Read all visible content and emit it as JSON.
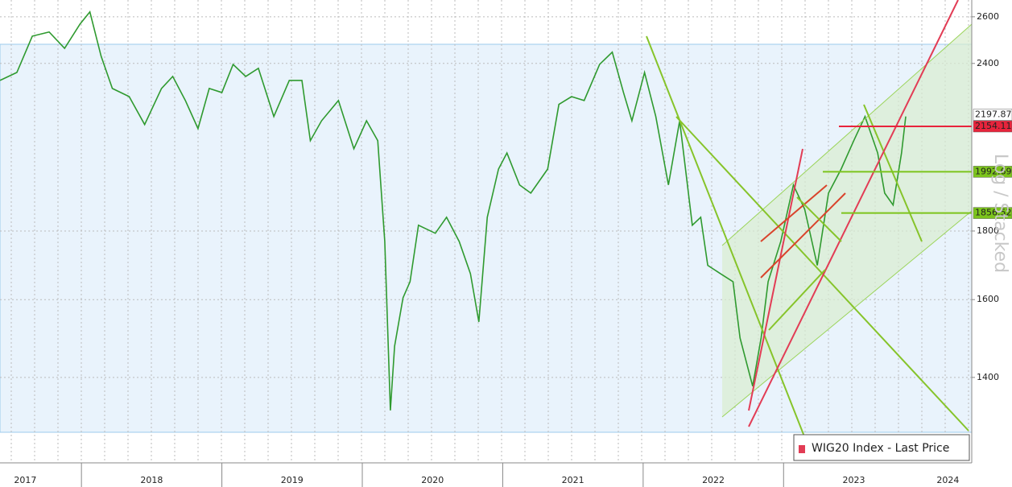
{
  "chart_data": {
    "type": "line",
    "legend": "WIG20 Index - Last Price",
    "side_label": "Log / Stacked",
    "log_scale": true,
    "grid": true,
    "series": [
      {
        "name": "WIG20 Index - Last Price",
        "color": "#2f9a2f",
        "x": [
          2017.42,
          2017.54,
          2017.65,
          2017.77,
          2017.88,
          2017.99,
          2018.06,
          2018.14,
          2018.22,
          2018.34,
          2018.45,
          2018.57,
          2018.65,
          2018.74,
          2018.83,
          2018.91,
          2019.0,
          2019.08,
          2019.17,
          2019.26,
          2019.37,
          2019.48,
          2019.57,
          2019.63,
          2019.71,
          2019.83,
          2019.94,
          2020.03,
          2020.11,
          2020.16,
          2020.2,
          2020.23,
          2020.29,
          2020.34,
          2020.4,
          2020.52,
          2020.6,
          2020.69,
          2020.77,
          2020.83,
          2020.89,
          2020.97,
          2021.03,
          2021.12,
          2021.2,
          2021.32,
          2021.4,
          2021.49,
          2021.58,
          2021.69,
          2021.78,
          2021.86,
          2021.92,
          2022.01,
          2022.09,
          2022.18,
          2022.26,
          2022.35,
          2022.41,
          2022.46,
          2022.55,
          2022.64,
          2022.69,
          2022.78,
          2022.84,
          2022.89,
          2022.98,
          2023.07,
          2023.15,
          2023.24,
          2023.32,
          2023.41,
          2023.5,
          2023.58,
          2023.67,
          2023.72,
          2023.78,
          2023.84,
          2023.87
        ],
        "values": [
          2331,
          2363,
          2515,
          2533,
          2463,
          2568,
          2622,
          2430,
          2299,
          2267,
          2161,
          2299,
          2347,
          2252,
          2146,
          2299,
          2283,
          2396,
          2347,
          2380,
          2191,
          2331,
          2331,
          2102,
          2175,
          2252,
          2073,
          2175,
          2102,
          1768,
          1323,
          1477,
          1605,
          1650,
          1818,
          1793,
          1843,
          1768,
          1673,
          1540,
          1843,
          2002,
          2058,
          1948,
          1921,
          2002,
          2237,
          2267,
          2252,
          2396,
          2447,
          2283,
          2175,
          2363,
          2191,
          1948,
          2175,
          1818,
          1843,
          1697,
          1673,
          1650,
          1498,
          1379,
          1498,
          1650,
          1768,
          1948,
          1869,
          1697,
          1921,
          2002,
          2102,
          2191,
          2058,
          1921,
          1882,
          2058,
          2191
        ]
      }
    ],
    "levels": [
      {
        "value": 2197.87,
        "color": "#ffffff",
        "text_color": "#222222"
      },
      {
        "value": 2154.11,
        "color": "#e8243c",
        "text_color": "#ffffff"
      },
      {
        "value": 1992.69,
        "color": "#7cc41c",
        "text_color": "#111111"
      },
      {
        "value": 1856.52,
        "color": "#7cc41c",
        "text_color": "#111111"
      }
    ],
    "xlim": [
      2017.42,
      2024.34
    ],
    "xticks": [
      {
        "value": 2017.6,
        "label": "2017"
      },
      {
        "value": 2018.5,
        "label": "2018"
      },
      {
        "value": 2019.5,
        "label": "2019"
      },
      {
        "value": 2020.5,
        "label": "2020"
      },
      {
        "value": 2021.5,
        "label": "2021"
      },
      {
        "value": 2022.5,
        "label": "2022"
      },
      {
        "value": 2023.5,
        "label": "2023"
      },
      {
        "value": 2024.17,
        "label": "2024"
      }
    ],
    "ylim": [
      1209,
      2676
    ],
    "yticks": [
      1400,
      1600,
      1800,
      2400,
      2600
    ]
  }
}
